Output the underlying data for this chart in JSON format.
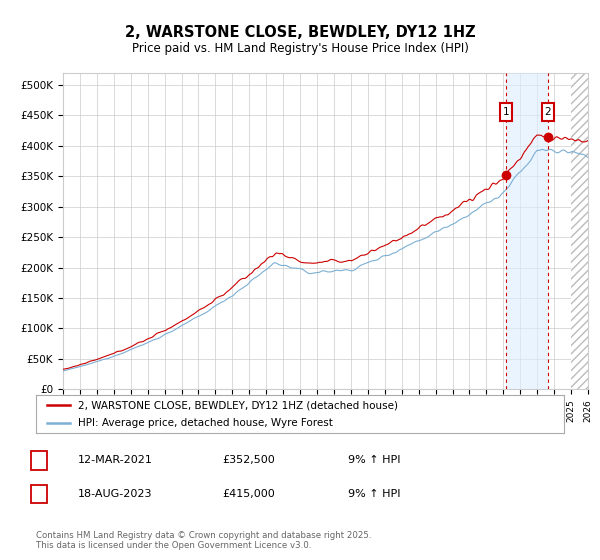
{
  "title": "2, WARSTONE CLOSE, BEWDLEY, DY12 1HZ",
  "subtitle": "Price paid vs. HM Land Registry's House Price Index (HPI)",
  "ylim": [
    0,
    520000
  ],
  "yticks": [
    0,
    50000,
    100000,
    150000,
    200000,
    250000,
    300000,
    350000,
    400000,
    450000,
    500000
  ],
  "ytick_labels": [
    "£0",
    "£50K",
    "£100K",
    "£150K",
    "£200K",
    "£250K",
    "£300K",
    "£350K",
    "£400K",
    "£450K",
    "£500K"
  ],
  "line1_color": "#cc0000",
  "line2_color": "#7bafd4",
  "bg_color": "#ffffff",
  "grid_color": "#cccccc",
  "marker1_date_x": 2021.17,
  "marker1_y": 352500,
  "marker2_date_x": 2023.62,
  "marker2_y": 415000,
  "shade_color": "#ddeeff",
  "dashed_line_color": "#cc0000",
  "hatch_start": 2025.0,
  "xlim_start": 1995.0,
  "xlim_end": 2026.0,
  "legend_line1": "2, WARSTONE CLOSE, BEWDLEY, DY12 1HZ (detached house)",
  "legend_line2": "HPI: Average price, detached house, Wyre Forest",
  "transaction1_label": "1",
  "transaction1_date": "12-MAR-2021",
  "transaction1_price": "£352,500",
  "transaction1_pct": "9% ↑ HPI",
  "transaction2_label": "2",
  "transaction2_date": "18-AUG-2023",
  "transaction2_price": "£415,000",
  "transaction2_pct": "9% ↑ HPI",
  "footnote": "Contains HM Land Registry data © Crown copyright and database right 2025.\nThis data is licensed under the Open Government Licence v3.0."
}
